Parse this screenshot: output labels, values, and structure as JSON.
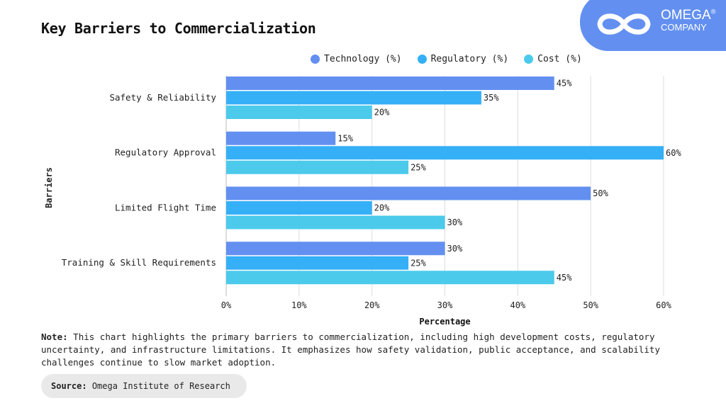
{
  "brand": {
    "name": "OMEGA",
    "registered": "®",
    "sub": "COMPANY"
  },
  "chart_data": {
    "type": "bar",
    "orientation": "horizontal",
    "title": "Key Barriers to Commercialization",
    "xlabel": "Percentage",
    "ylabel": "Barriers",
    "xlim": [
      0,
      60
    ],
    "xticks": [
      "0%",
      "10%",
      "20%",
      "30%",
      "40%",
      "50%",
      "60%"
    ],
    "grid": true,
    "legend_position": "top-right",
    "categories": [
      "Safety & Reliability",
      "Regulatory Approval",
      "Limited Flight Time",
      "Training & Skill Requirements"
    ],
    "series": [
      {
        "name": "Technology (%)",
        "color": "#6390f0",
        "values": [
          45,
          15,
          50,
          30
        ]
      },
      {
        "name": "Regulatory (%)",
        "color": "#35b0f7",
        "values": [
          35,
          60,
          20,
          25
        ]
      },
      {
        "name": "Cost (%)",
        "color": "#4ccaeb",
        "values": [
          20,
          25,
          30,
          45
        ]
      }
    ]
  },
  "note": {
    "label": "Note:",
    "text": "This chart highlights the primary barriers to commercialization, including high development costs, regulatory uncertainty, and infrastructure limitations. It emphasizes how safety validation, public acceptance, and scalability challenges continue to slow market adoption."
  },
  "source": {
    "label": "Source:",
    "text": "Omega Institute of Research"
  }
}
